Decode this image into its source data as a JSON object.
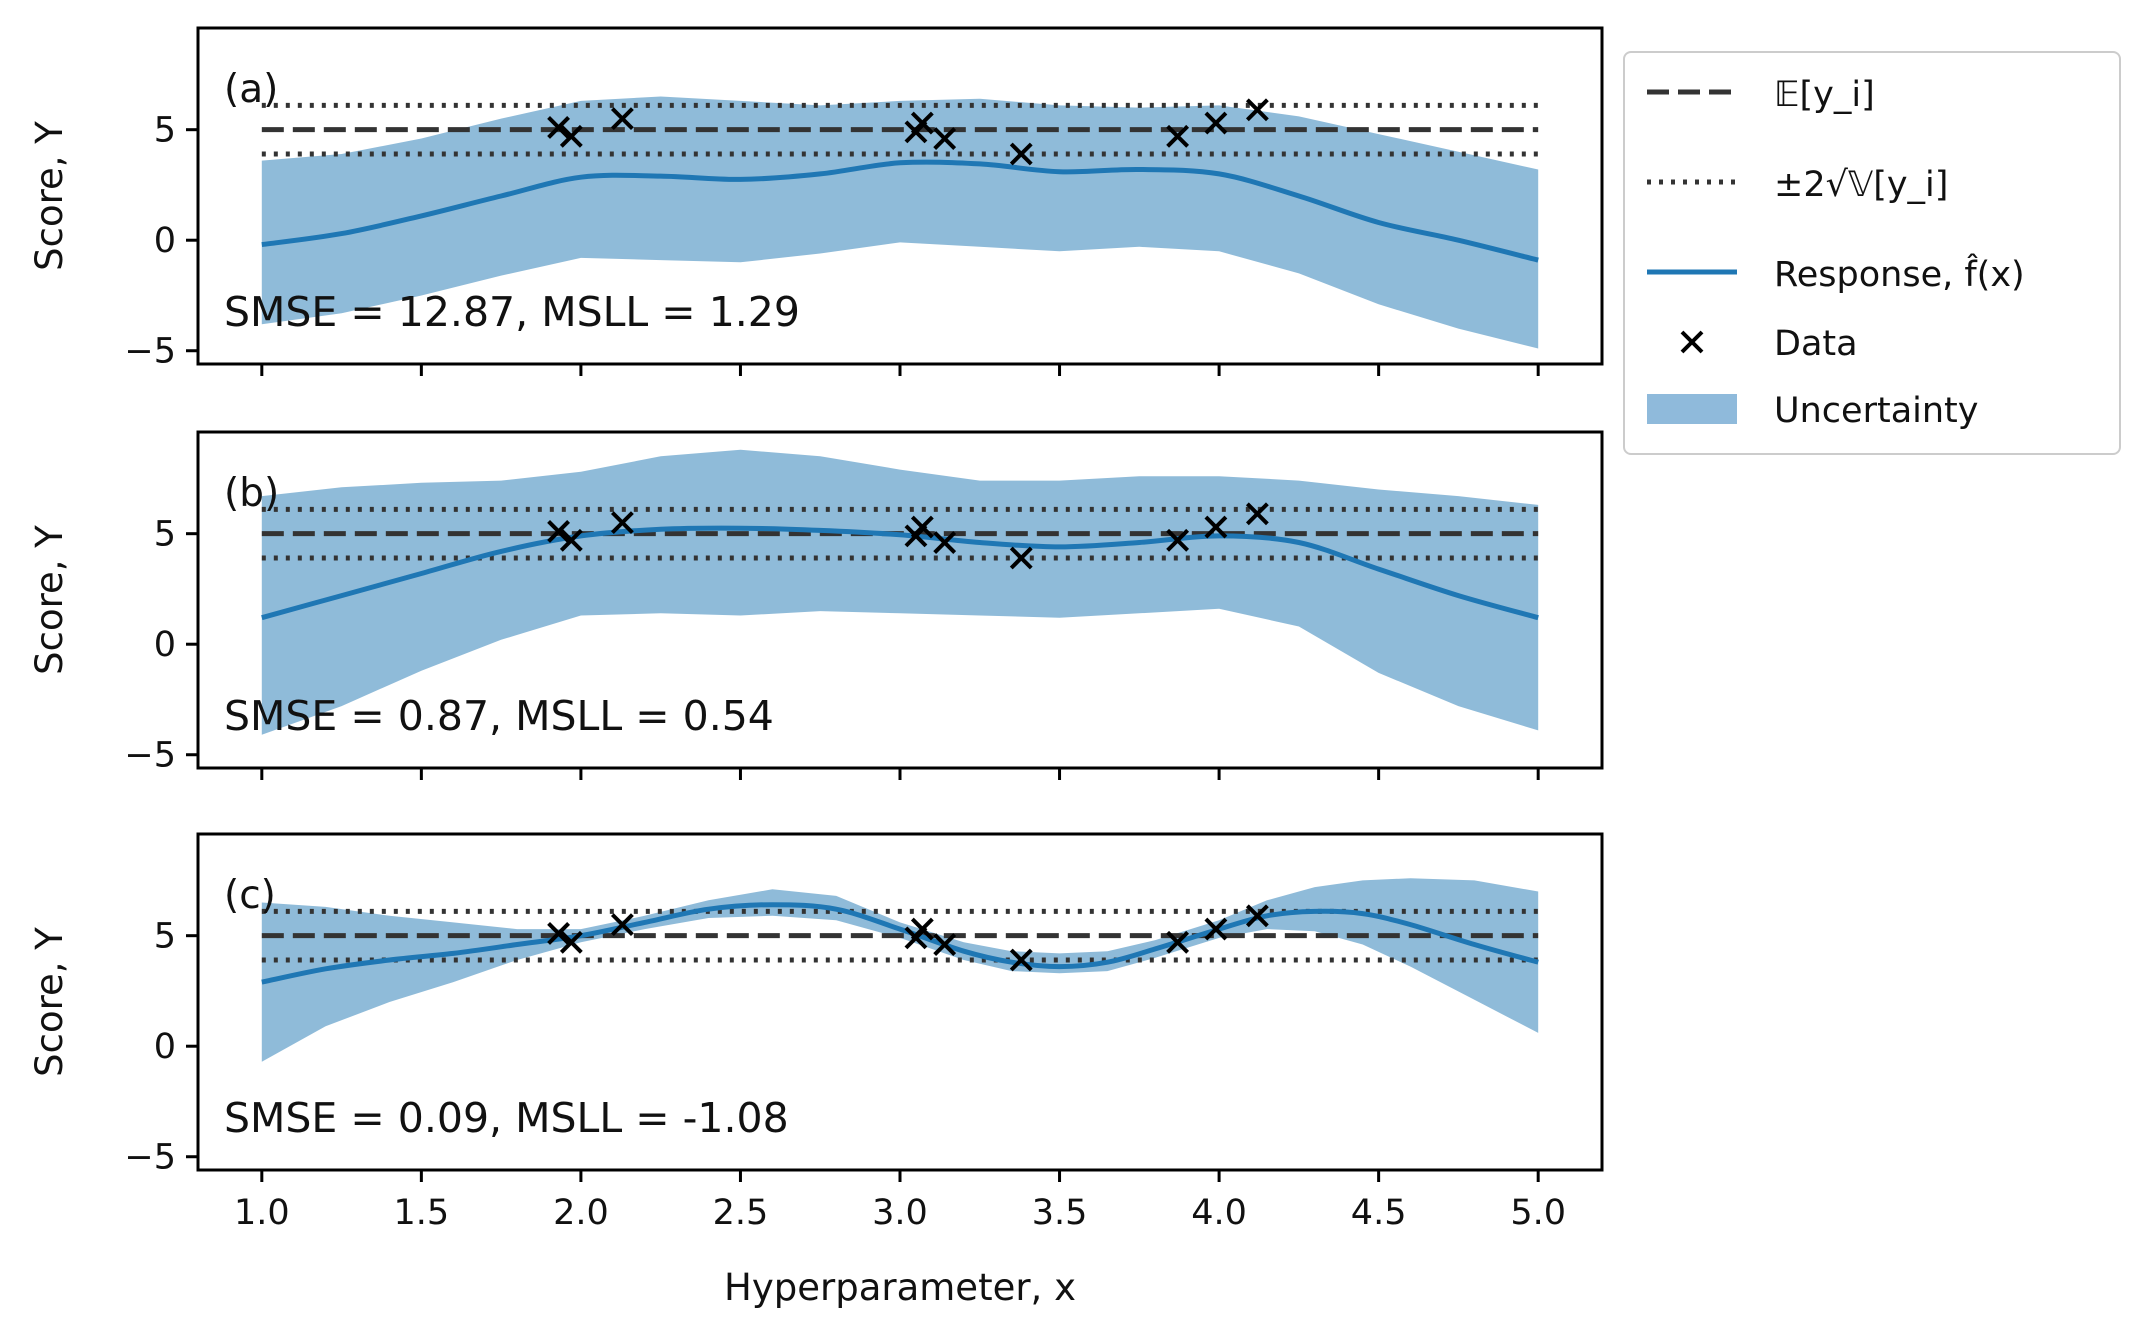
{
  "figure": {
    "xlabel": "Hyperparameter, x",
    "ylabel": "Score, Y",
    "xticks": [
      "1.0",
      "1.5",
      "2.0",
      "2.5",
      "3.0",
      "3.5",
      "4.0",
      "4.5",
      "5.0"
    ],
    "yticks": [
      "−5",
      "0",
      "5"
    ]
  },
  "legend": {
    "position": "upper right, outside axes",
    "items": [
      {
        "key": "expected",
        "label": "𝔼[y_i]",
        "style": "dashed",
        "color": "#333333"
      },
      {
        "key": "bounds",
        "label": "±2√𝕍[y_i]",
        "style": "dotted",
        "color": "#333333"
      },
      {
        "key": "response",
        "label": "Response, f̂(x)",
        "style": "line",
        "color": "#1f77b4"
      },
      {
        "key": "data",
        "label": "Data",
        "style": "marker-x",
        "color": "#000000"
      },
      {
        "key": "uncertainty",
        "label": "Uncertainty",
        "style": "band",
        "color": "#8fbadb"
      }
    ]
  },
  "chart_data": [
    {
      "type": "line",
      "panel_label": "(a)",
      "annotation": "SMSE = 12.87, MSLL = 1.29",
      "xlim": [
        0.8,
        5.2
      ],
      "ylim": [
        -5.6,
        9.6
      ],
      "grid": false,
      "expected_value": 5.0,
      "bounds": [
        3.9,
        6.1
      ],
      "data_points": {
        "x": [
          1.93,
          1.97,
          2.13,
          3.05,
          3.07,
          3.14,
          3.38,
          3.87,
          3.99,
          4.12
        ],
        "y": [
          5.1,
          4.7,
          5.5,
          4.9,
          5.3,
          4.6,
          3.9,
          4.7,
          5.3,
          5.9
        ]
      },
      "response": {
        "x": [
          1.0,
          1.25,
          1.5,
          1.75,
          2.0,
          2.25,
          2.5,
          2.75,
          3.0,
          3.25,
          3.5,
          3.75,
          4.0,
          4.25,
          4.5,
          4.75,
          5.0
        ],
        "y": [
          -0.2,
          0.3,
          1.1,
          2.0,
          2.85,
          2.9,
          2.75,
          3.0,
          3.5,
          3.45,
          3.1,
          3.2,
          3.0,
          2.0,
          0.8,
          0.0,
          -0.9
        ]
      },
      "uncertainty": {
        "x": [
          1.0,
          1.25,
          1.5,
          1.75,
          2.0,
          2.25,
          2.5,
          2.75,
          3.0,
          3.25,
          3.5,
          3.75,
          4.0,
          4.25,
          4.5,
          4.75,
          5.0
        ],
        "upper": [
          3.6,
          3.9,
          4.6,
          5.5,
          6.3,
          6.5,
          6.3,
          6.1,
          6.3,
          6.4,
          6.1,
          6.0,
          6.1,
          5.6,
          4.8,
          4.0,
          3.2
        ],
        "lower": [
          -3.8,
          -3.3,
          -2.5,
          -1.6,
          -0.8,
          -0.9,
          -1.0,
          -0.6,
          -0.1,
          -0.3,
          -0.5,
          -0.3,
          -0.5,
          -1.5,
          -2.9,
          -4.0,
          -4.9
        ]
      }
    },
    {
      "type": "line",
      "panel_label": "(b)",
      "annotation": "SMSE = 0.87, MSLL = 0.54",
      "xlim": [
        0.8,
        5.2
      ],
      "ylim": [
        -5.6,
        9.6
      ],
      "grid": false,
      "expected_value": 5.0,
      "bounds": [
        3.9,
        6.1
      ],
      "data_points": {
        "x": [
          1.93,
          1.97,
          2.13,
          3.05,
          3.07,
          3.14,
          3.38,
          3.87,
          3.99,
          4.12
        ],
        "y": [
          5.1,
          4.7,
          5.5,
          4.9,
          5.3,
          4.6,
          3.9,
          4.7,
          5.3,
          5.9
        ]
      },
      "response": {
        "x": [
          1.0,
          1.25,
          1.5,
          1.75,
          2.0,
          2.25,
          2.5,
          2.75,
          3.0,
          3.25,
          3.5,
          3.75,
          4.0,
          4.25,
          4.5,
          4.75,
          5.0
        ],
        "y": [
          1.2,
          2.2,
          3.2,
          4.2,
          4.9,
          5.2,
          5.25,
          5.15,
          4.95,
          4.6,
          4.4,
          4.6,
          4.9,
          4.6,
          3.4,
          2.2,
          1.2
        ]
      },
      "uncertainty": {
        "x": [
          1.0,
          1.25,
          1.5,
          1.75,
          2.0,
          2.25,
          2.5,
          2.75,
          3.0,
          3.25,
          3.5,
          3.75,
          4.0,
          4.25,
          4.5,
          4.75,
          5.0
        ],
        "upper": [
          6.7,
          7.1,
          7.3,
          7.4,
          7.8,
          8.5,
          8.8,
          8.5,
          7.9,
          7.4,
          7.4,
          7.6,
          7.6,
          7.4,
          7.0,
          6.7,
          6.3
        ],
        "lower": [
          -4.1,
          -2.8,
          -1.2,
          0.2,
          1.3,
          1.4,
          1.3,
          1.5,
          1.4,
          1.3,
          1.2,
          1.4,
          1.6,
          0.8,
          -1.3,
          -2.8,
          -3.9
        ]
      }
    },
    {
      "type": "line",
      "panel_label": "(c)",
      "annotation": "SMSE = 0.09, MSLL = -1.08",
      "xlim": [
        0.8,
        5.2
      ],
      "ylim": [
        -5.6,
        9.6
      ],
      "grid": false,
      "expected_value": 5.0,
      "bounds": [
        3.9,
        6.1
      ],
      "data_points": {
        "x": [
          1.93,
          1.97,
          2.13,
          3.05,
          3.07,
          3.14,
          3.38,
          3.87,
          3.99,
          4.12
        ],
        "y": [
          5.1,
          4.7,
          5.5,
          4.9,
          5.3,
          4.6,
          3.9,
          4.7,
          5.3,
          5.9
        ]
      },
      "response": {
        "x": [
          1.0,
          1.2,
          1.4,
          1.6,
          1.8,
          2.0,
          2.2,
          2.4,
          2.6,
          2.8,
          3.0,
          3.2,
          3.35,
          3.5,
          3.65,
          3.8,
          4.0,
          4.15,
          4.3,
          4.45,
          4.6,
          4.8,
          5.0
        ],
        "y": [
          2.9,
          3.5,
          3.9,
          4.2,
          4.6,
          5.0,
          5.6,
          6.2,
          6.4,
          6.2,
          5.3,
          4.3,
          3.8,
          3.6,
          3.8,
          4.4,
          5.3,
          5.9,
          6.1,
          6.0,
          5.5,
          4.6,
          3.8
        ]
      },
      "uncertainty": {
        "x": [
          1.0,
          1.2,
          1.4,
          1.6,
          1.8,
          2.0,
          2.2,
          2.4,
          2.6,
          2.8,
          3.0,
          3.2,
          3.35,
          3.5,
          3.65,
          3.8,
          4.0,
          4.15,
          4.3,
          4.45,
          4.6,
          4.8,
          5.0
        ],
        "upper": [
          6.5,
          6.3,
          5.9,
          5.6,
          5.3,
          5.3,
          5.9,
          6.6,
          7.1,
          6.8,
          5.6,
          4.7,
          4.3,
          4.2,
          4.3,
          4.8,
          5.7,
          6.6,
          7.2,
          7.5,
          7.6,
          7.5,
          7.0
        ],
        "lower": [
          -0.7,
          0.9,
          2.0,
          2.9,
          3.9,
          4.7,
          5.3,
          5.8,
          5.9,
          5.7,
          4.9,
          3.9,
          3.4,
          3.3,
          3.4,
          4.0,
          4.9,
          5.3,
          5.2,
          4.6,
          3.6,
          2.1,
          0.6
        ]
      }
    }
  ]
}
